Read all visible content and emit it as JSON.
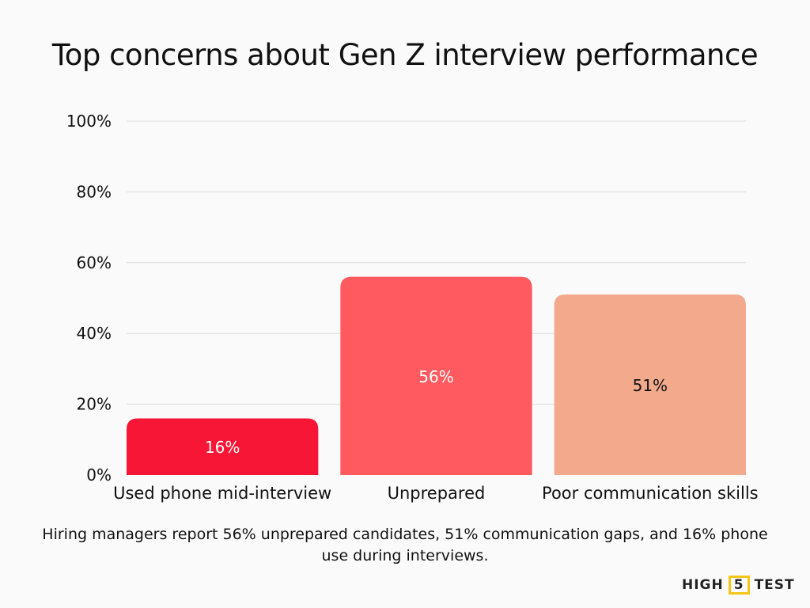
{
  "chart_data": {
    "type": "bar",
    "title": "Top concerns about Gen Z interview performance",
    "categories": [
      "Used phone mid-interview",
      "Unprepared",
      "Poor communication skills"
    ],
    "values": [
      16,
      56,
      51
    ],
    "data_labels": [
      "16%",
      "56%",
      "51%"
    ],
    "colors": [
      "#f71635",
      "#ff5a5f",
      "#f2a98c"
    ],
    "label_colors": [
      "#ffffff",
      "#ffffff",
      "#111111"
    ],
    "ylim": [
      0,
      100
    ],
    "yticks": [
      0,
      20,
      40,
      60,
      80,
      100
    ],
    "ytick_labels": [
      "0%",
      "20%",
      "40%",
      "60%",
      "80%",
      "100%"
    ],
    "grid": true,
    "xlabel": "",
    "ylabel": ""
  },
  "caption": "Hiring managers report 56% unprepared candidates, 51% communication gaps, and 16% phone use during interviews.",
  "logo": {
    "left": "HIGH",
    "box": "5",
    "right": "TEST"
  }
}
